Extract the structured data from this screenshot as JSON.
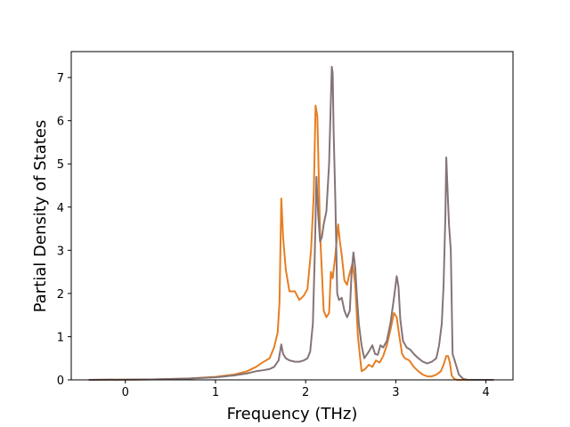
{
  "chart_data": {
    "type": "line",
    "title": "",
    "xlabel": "Frequency (THz)",
    "ylabel": "Partial Density of States",
    "xlim": [
      -0.6,
      4.3
    ],
    "ylim": [
      0,
      7.6
    ],
    "xticks": [
      0,
      1,
      2,
      3,
      4
    ],
    "xtick_labels": [
      "0",
      "1",
      "2",
      "3",
      "4"
    ],
    "yticks": [
      0,
      1,
      2,
      3,
      4,
      5,
      6,
      7
    ],
    "ytick_labels": [
      "0",
      "1",
      "2",
      "3",
      "4",
      "5",
      "6",
      "7"
    ],
    "grid": false,
    "legend": "none",
    "series": [
      {
        "color": "#e67e22",
        "x": [
          -0.4,
          0.3,
          0.7,
          1.0,
          1.2,
          1.35,
          1.45,
          1.52,
          1.6,
          1.65,
          1.69,
          1.71,
          1.73,
          1.75,
          1.78,
          1.82,
          1.88,
          1.93,
          1.98,
          2.02,
          2.06,
          2.09,
          2.11,
          2.13,
          2.16,
          2.2,
          2.23,
          2.26,
          2.28,
          2.3,
          2.33,
          2.36,
          2.38,
          2.4,
          2.43,
          2.46,
          2.48,
          2.52,
          2.55,
          2.58,
          2.62,
          2.66,
          2.7,
          2.74,
          2.78,
          2.82,
          2.86,
          2.9,
          2.94,
          2.98,
          3.01,
          3.04,
          3.07,
          3.1,
          3.15,
          3.2,
          3.25,
          3.3,
          3.35,
          3.4,
          3.45,
          3.5,
          3.53,
          3.56,
          3.58,
          3.6,
          3.62,
          3.65,
          3.68,
          3.75,
          4.0,
          4.08
        ],
        "y": [
          0,
          0.01,
          0.03,
          0.07,
          0.12,
          0.2,
          0.3,
          0.4,
          0.5,
          0.75,
          1.1,
          1.8,
          4.2,
          3.3,
          2.55,
          2.05,
          2.05,
          1.85,
          1.95,
          2.1,
          3.0,
          4.3,
          6.35,
          6.1,
          3.4,
          1.6,
          1.45,
          1.55,
          2.5,
          2.35,
          2.9,
          3.6,
          3.2,
          2.9,
          2.3,
          2.2,
          2.4,
          2.7,
          2.2,
          1.0,
          0.2,
          0.25,
          0.35,
          0.3,
          0.45,
          0.4,
          0.55,
          0.8,
          1.15,
          1.55,
          1.45,
          1.0,
          0.6,
          0.5,
          0.45,
          0.3,
          0.2,
          0.12,
          0.08,
          0.08,
          0.12,
          0.2,
          0.35,
          0.55,
          0.55,
          0.4,
          0.1,
          0.02,
          0,
          0,
          0,
          0
        ]
      },
      {
        "color": "#857476",
        "x": [
          -0.4,
          0.3,
          0.7,
          1.0,
          1.2,
          1.35,
          1.45,
          1.52,
          1.6,
          1.65,
          1.7,
          1.73,
          1.75,
          1.78,
          1.82,
          1.88,
          1.93,
          1.98,
          2.02,
          2.05,
          2.08,
          2.1,
          2.12,
          2.14,
          2.16,
          2.18,
          2.2,
          2.23,
          2.26,
          2.28,
          2.29,
          2.3,
          2.31,
          2.33,
          2.35,
          2.37,
          2.4,
          2.43,
          2.46,
          2.49,
          2.51,
          2.53,
          2.55,
          2.57,
          2.59,
          2.62,
          2.65,
          2.7,
          2.74,
          2.77,
          2.8,
          2.83,
          2.86,
          2.9,
          2.94,
          2.98,
          3.01,
          3.03,
          3.05,
          3.08,
          3.12,
          3.16,
          3.2,
          3.25,
          3.3,
          3.35,
          3.4,
          3.45,
          3.48,
          3.51,
          3.53,
          3.55,
          3.56,
          3.57,
          3.59,
          3.61,
          3.63,
          3.66,
          3.7,
          3.75,
          3.8,
          4.08
        ],
        "y": [
          0,
          0.01,
          0.03,
          0.06,
          0.1,
          0.15,
          0.2,
          0.22,
          0.25,
          0.3,
          0.45,
          0.82,
          0.6,
          0.5,
          0.45,
          0.42,
          0.42,
          0.45,
          0.5,
          0.65,
          1.3,
          2.8,
          4.7,
          3.8,
          3.2,
          3.3,
          3.6,
          3.9,
          5.0,
          6.5,
          7.25,
          7.1,
          5.8,
          4.1,
          2.0,
          1.85,
          1.9,
          1.6,
          1.45,
          1.6,
          2.5,
          2.95,
          2.6,
          1.9,
          1.3,
          0.8,
          0.5,
          0.65,
          0.8,
          0.6,
          0.58,
          0.8,
          0.75,
          0.9,
          1.3,
          1.9,
          2.4,
          2.15,
          1.4,
          0.9,
          0.75,
          0.7,
          0.6,
          0.5,
          0.42,
          0.38,
          0.42,
          0.5,
          0.8,
          1.3,
          2.2,
          3.8,
          5.15,
          4.6,
          3.6,
          3.0,
          0.6,
          0.4,
          0.12,
          0.02,
          0,
          0
        ]
      }
    ]
  }
}
